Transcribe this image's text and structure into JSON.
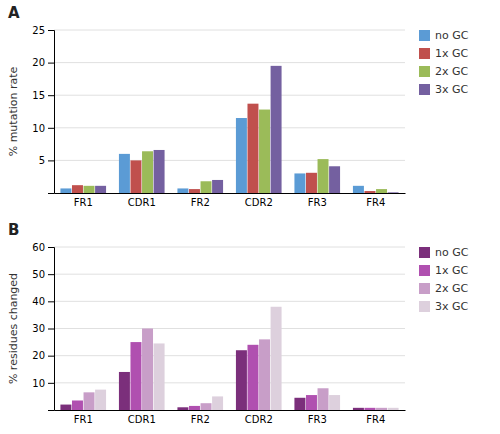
{
  "chart_data": [
    {
      "type": "bar",
      "title": "A",
      "y_label": "% mutation rate",
      "categories": [
        "FR1",
        "CDR1",
        "FR2",
        "CDR2",
        "FR3",
        "FR4"
      ],
      "series": [
        {
          "name": "no GC",
          "color": "#5b9bd5",
          "values": [
            0.7,
            6.0,
            0.7,
            11.5,
            3.0,
            1.1
          ]
        },
        {
          "name": "1x GC",
          "color": "#c0504d",
          "values": [
            1.2,
            5.0,
            0.6,
            13.7,
            3.1,
            0.3
          ]
        },
        {
          "name": "2x GC",
          "color": "#9bbb59",
          "values": [
            1.1,
            6.4,
            1.8,
            12.8,
            5.2,
            0.6
          ]
        },
        {
          "name": "3x GC",
          "color": "#7460a0",
          "values": [
            1.1,
            6.6,
            2.0,
            19.5,
            4.1,
            0.1
          ]
        }
      ],
      "ylim": [
        0,
        25
      ],
      "yticks": [
        5,
        10,
        15,
        20,
        25
      ],
      "grid": true,
      "legend": "right"
    },
    {
      "type": "bar",
      "title": "B",
      "y_label": "% residues changed",
      "categories": [
        "FR1",
        "CDR1",
        "FR2",
        "CDR2",
        "FR3",
        "FR4"
      ],
      "series": [
        {
          "name": "no GC",
          "color": "#7b2f7b",
          "values": [
            2.0,
            14.0,
            1.0,
            22.0,
            4.5,
            0.8
          ]
        },
        {
          "name": "1x GC",
          "color": "#b050b0",
          "values": [
            3.5,
            25.0,
            1.5,
            24.0,
            5.5,
            0.8
          ]
        },
        {
          "name": "2x GC",
          "color": "#c89ec8",
          "values": [
            6.5,
            30.0,
            2.5,
            26.0,
            8.0,
            0.8
          ]
        },
        {
          "name": "3x GC",
          "color": "#ddd0dd",
          "values": [
            7.5,
            24.5,
            5.0,
            38.0,
            5.5,
            0.8
          ]
        }
      ],
      "ylim": [
        0,
        60
      ],
      "yticks": [
        10,
        20,
        30,
        40,
        50,
        60
      ],
      "grid": true,
      "legend": "right"
    }
  ]
}
